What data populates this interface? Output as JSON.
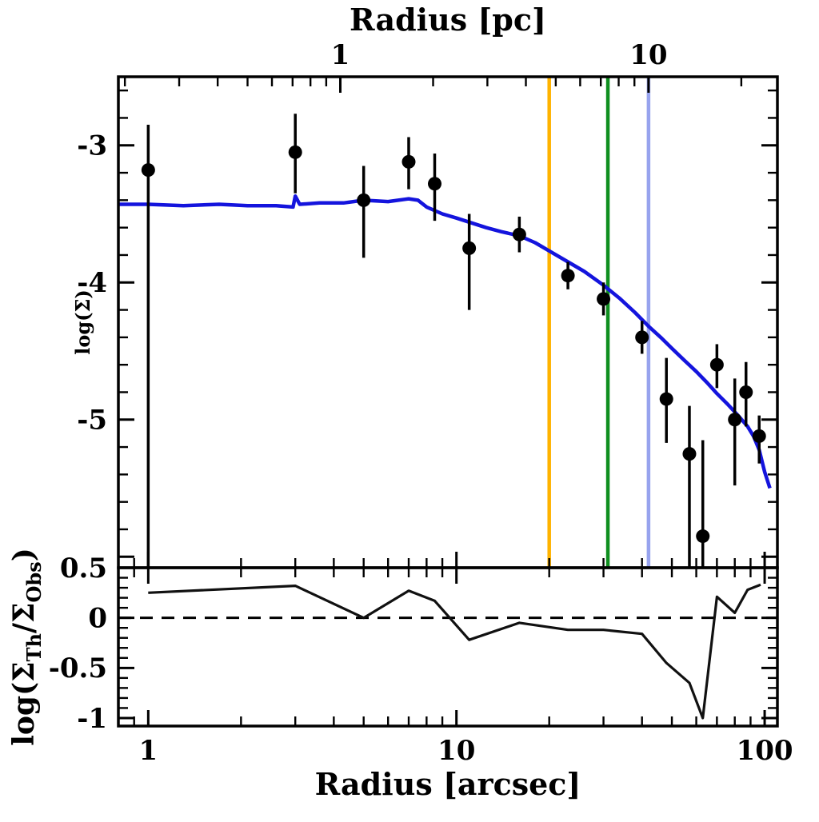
{
  "chart_data": {
    "type": "scatter",
    "x_scale": "log",
    "xlabel_bottom": "Radius [arcsec]",
    "xlabel_top": "Radius [pc]",
    "ylabel_main": "log(Σ)",
    "ylabel_residual_parts": [
      {
        "t": "log(Σ",
        "sub": false
      },
      {
        "t": "Th",
        "sub": true
      },
      {
        "t": "/Σ",
        "sub": false
      },
      {
        "t": "Obs",
        "sub": true
      },
      {
        "t": ")",
        "sub": false
      }
    ],
    "xlim": [
      0.8,
      110
    ],
    "main_ylim": [
      -6.08,
      -2.5
    ],
    "residual_ylim": [
      -1.08,
      0.5
    ],
    "arcsec_per_pc": 4.2,
    "bottom_xticks": [
      {
        "v": 1,
        "label": "1"
      },
      {
        "v": 10,
        "label": "10"
      },
      {
        "v": 100,
        "label": "100"
      }
    ],
    "top_xticks_pc": [
      {
        "v": 1,
        "label": "1"
      },
      {
        "v": 10,
        "label": "10"
      }
    ],
    "main_yticks": [
      {
        "v": -3,
        "label": "-3"
      },
      {
        "v": -4,
        "label": "-4"
      },
      {
        "v": -5,
        "label": "-5"
      }
    ],
    "main_extra_ticks": [
      -6
    ],
    "residual_yticks": [
      {
        "v": 0.5,
        "label": "0.5"
      },
      {
        "v": 0,
        "label": "0"
      },
      {
        "v": -0.5,
        "label": "-0.5"
      },
      {
        "v": -1,
        "label": "-1"
      }
    ],
    "points": {
      "color": "#000000",
      "x": [
        1.0,
        3.0,
        5.0,
        7.0,
        8.5,
        11,
        16,
        23,
        30,
        40,
        48,
        57,
        63,
        70,
        80,
        87,
        96
      ],
      "y": [
        -3.18,
        -3.05,
        -3.4,
        -3.12,
        -3.28,
        -3.75,
        -3.65,
        -3.95,
        -4.12,
        -4.4,
        -4.85,
        -5.25,
        -5.85,
        -4.6,
        -5.0,
        -4.8,
        -5.12
      ],
      "err_up": [
        0.33,
        0.28,
        0.25,
        0.18,
        0.22,
        0.25,
        0.13,
        0.1,
        0.12,
        0.12,
        0.3,
        0.35,
        0.7,
        0.15,
        0.3,
        0.22,
        0.15
      ],
      "err_down": [
        3.0,
        0.3,
        0.42,
        0.2,
        0.27,
        0.45,
        0.13,
        0.1,
        0.12,
        0.12,
        0.32,
        0.9,
        0.4,
        0.17,
        0.48,
        0.25,
        0.2
      ]
    },
    "model_curve": {
      "color": "#1414dd",
      "x": [
        0.8,
        1.0,
        1.3,
        1.7,
        2.1,
        2.6,
        2.95,
        3.0,
        3.1,
        3.6,
        4.3,
        5.0,
        6.0,
        7.0,
        7.5,
        8.0,
        9.0,
        10,
        11,
        12.5,
        14,
        16,
        18,
        20,
        23,
        26,
        30,
        34,
        38,
        42,
        46,
        50,
        55,
        60,
        65,
        70,
        76,
        82,
        88,
        92,
        96,
        100,
        104
      ],
      "y": [
        -3.43,
        -3.43,
        -3.44,
        -3.43,
        -3.44,
        -3.44,
        -3.45,
        -3.37,
        -3.43,
        -3.42,
        -3.42,
        -3.4,
        -3.41,
        -3.39,
        -3.4,
        -3.45,
        -3.5,
        -3.53,
        -3.56,
        -3.6,
        -3.63,
        -3.66,
        -3.71,
        -3.77,
        -3.85,
        -3.92,
        -4.02,
        -4.12,
        -4.22,
        -4.32,
        -4.4,
        -4.48,
        -4.57,
        -4.65,
        -4.73,
        -4.81,
        -4.89,
        -4.97,
        -5.05,
        -5.12,
        -5.22,
        -5.38,
        -5.5
      ]
    },
    "vertical_lines": [
      {
        "x": 20,
        "color": "#ffb300"
      },
      {
        "x": 31,
        "color": "#0f8f1f"
      },
      {
        "x": 42,
        "color": "#97a3ee"
      }
    ],
    "residual_curve": {
      "color": "#111111",
      "x": [
        1,
        3,
        5,
        7,
        8.5,
        11,
        16,
        23,
        30,
        40,
        48,
        57,
        63,
        70,
        80,
        88,
        97
      ],
      "y": [
        0.25,
        0.32,
        0.0,
        0.27,
        0.17,
        -0.22,
        -0.05,
        -0.12,
        -0.12,
        -0.16,
        -0.45,
        -0.65,
        -1.0,
        0.21,
        0.05,
        0.28,
        0.33
      ]
    },
    "zero_line": {
      "value": 0,
      "style": "dashed"
    }
  }
}
